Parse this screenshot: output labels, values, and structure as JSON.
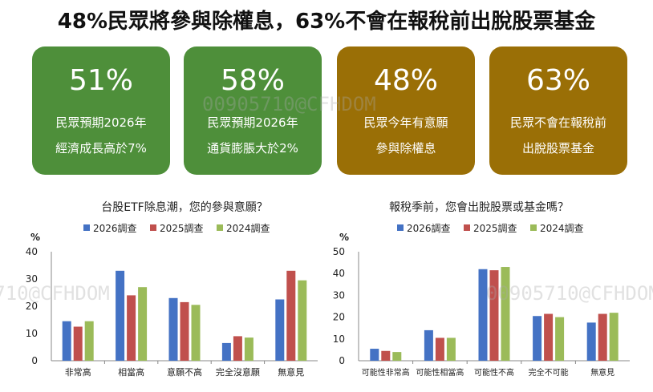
{
  "headline": "48%民眾將參與除權息，63%不會在報稅前出脫股票基金",
  "cards": [
    {
      "pct": "51%",
      "line1": "民眾預期2026年",
      "line2": "經濟成長高於7%",
      "color": "#4E8F3A"
    },
    {
      "pct": "58%",
      "line1": "民眾預期2026年",
      "line2": "通貨膨脹大於2%",
      "color": "#4E8F3A"
    },
    {
      "pct": "48%",
      "line1": "民眾今年有意願",
      "line2": "參與除權息",
      "color": "#9A6F06"
    },
    {
      "pct": "63%",
      "line1": "民眾不會在報稅前",
      "line2": "出脫股票基金",
      "color": "#9A6F06"
    }
  ],
  "watermark": "00905710@CFHDOM",
  "chart_data": [
    {
      "type": "bar",
      "title": "台股ETF除息潮，您的參與意願？",
      "ylabel": "%",
      "ylim": [
        0,
        40
      ],
      "yticks": [
        0,
        10,
        20,
        30,
        40
      ],
      "categories": [
        "非常高",
        "相當高",
        "意願不高",
        "完全沒意願",
        "無意見"
      ],
      "legend_position": "top",
      "series": [
        {
          "name": "2026調查",
          "color": "#4472C4",
          "values": [
            14.5,
            33,
            23,
            6.5,
            22.5
          ]
        },
        {
          "name": "2025調查",
          "color": "#C0504D",
          "values": [
            12.5,
            24,
            21.5,
            9,
            33
          ]
        },
        {
          "name": "2024調查",
          "color": "#9BBB59",
          "values": [
            14.5,
            27,
            20.5,
            8.5,
            29.5
          ]
        }
      ]
    },
    {
      "type": "bar",
      "title": "報稅季前，您會出脫股票或基金嗎？",
      "ylabel": "%",
      "ylim": [
        0,
        50
      ],
      "yticks": [
        0,
        10,
        20,
        30,
        40,
        50
      ],
      "categories": [
        "可能性非常高",
        "可能性相當高",
        "可能性不高",
        "完全不可能",
        "無意見"
      ],
      "legend_position": "top",
      "series": [
        {
          "name": "2026調查",
          "color": "#4472C4",
          "values": [
            5.5,
            14,
            42,
            20.5,
            17.5
          ]
        },
        {
          "name": "2025調查",
          "color": "#C0504D",
          "values": [
            4.5,
            10.5,
            41.5,
            21.5,
            21.5
          ]
        },
        {
          "name": "2024調查",
          "color": "#9BBB59",
          "values": [
            4,
            10.5,
            43,
            20,
            22
          ]
        }
      ]
    }
  ]
}
